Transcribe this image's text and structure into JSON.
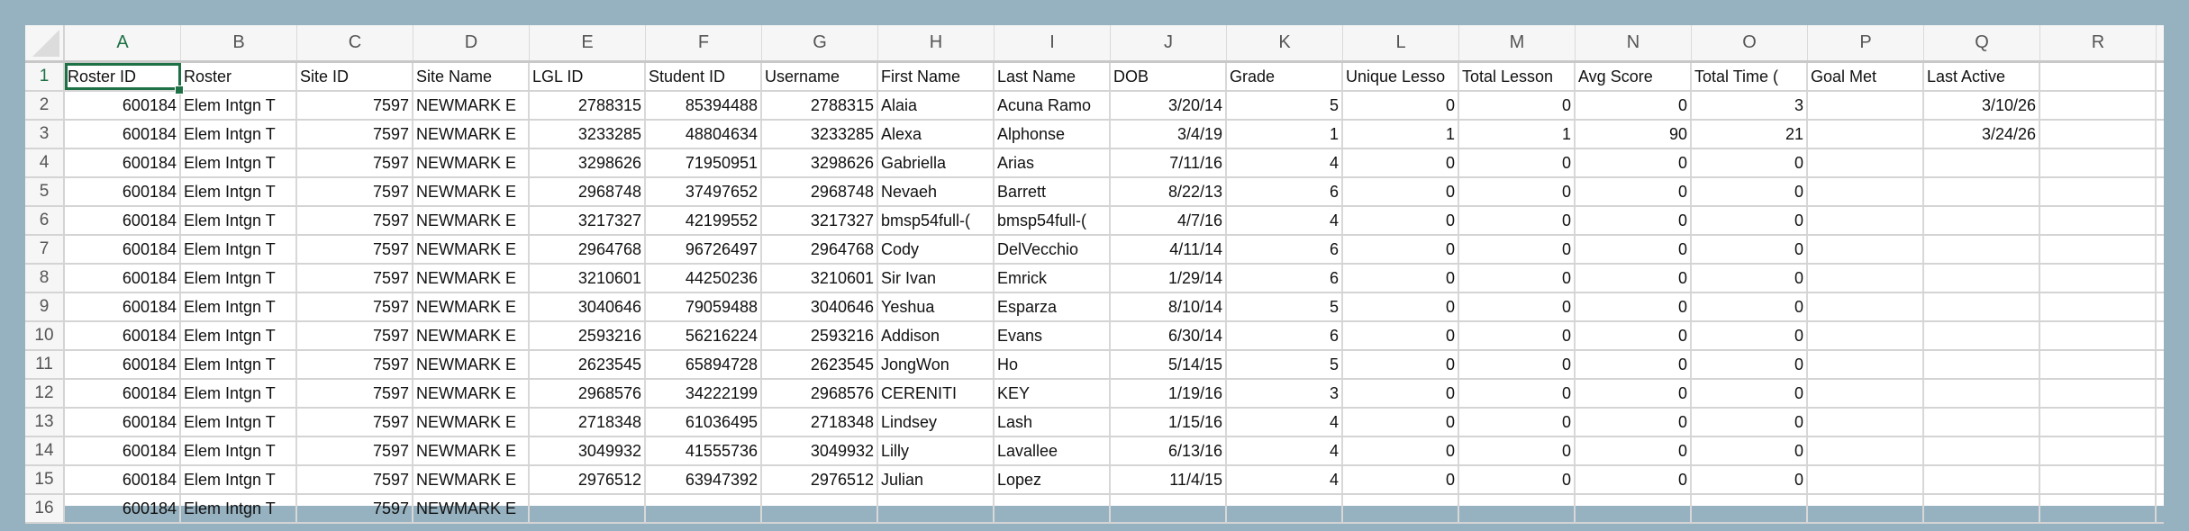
{
  "columns": [
    "A",
    "B",
    "C",
    "D",
    "E",
    "F",
    "G",
    "H",
    "I",
    "J",
    "K",
    "L",
    "M",
    "N",
    "O",
    "P",
    "Q",
    "R"
  ],
  "active_cell": "A1",
  "accent_color": "#1e7145",
  "rows": [
    {
      "n": "1",
      "cells": [
        "Roster ID",
        "Roster",
        "Site ID",
        "Site Name",
        "LGL ID",
        "Student ID",
        "Username",
        "First Name",
        "Last Name",
        "DOB",
        "Grade",
        "Unique Lesso",
        "Total Lesson",
        "Avg Score",
        "Total Time (",
        "Goal Met",
        "Last Active",
        ""
      ]
    },
    {
      "n": "2",
      "cells": [
        "600184",
        "Elem Intgn T",
        "7597",
        "NEWMARK E",
        "2788315",
        "85394488",
        "2788315",
        "Alaia",
        "Acuna Ramo",
        "3/20/14",
        "5",
        "0",
        "0",
        "0",
        "3",
        "",
        "3/10/26",
        ""
      ]
    },
    {
      "n": "3",
      "cells": [
        "600184",
        "Elem Intgn T",
        "7597",
        "NEWMARK E",
        "3233285",
        "48804634",
        "3233285",
        "Alexa",
        "Alphonse",
        "3/4/19",
        "1",
        "1",
        "1",
        "90",
        "21",
        "",
        "3/24/26",
        ""
      ]
    },
    {
      "n": "4",
      "cells": [
        "600184",
        "Elem Intgn T",
        "7597",
        "NEWMARK E",
        "3298626",
        "71950951",
        "3298626",
        "Gabriella",
        "Arias",
        "7/11/16",
        "4",
        "0",
        "0",
        "0",
        "0",
        "",
        "",
        ""
      ]
    },
    {
      "n": "5",
      "cells": [
        "600184",
        "Elem Intgn T",
        "7597",
        "NEWMARK E",
        "2968748",
        "37497652",
        "2968748",
        "Nevaeh",
        "Barrett",
        "8/22/13",
        "6",
        "0",
        "0",
        "0",
        "0",
        "",
        "",
        ""
      ]
    },
    {
      "n": "6",
      "cells": [
        "600184",
        "Elem Intgn T",
        "7597",
        "NEWMARK E",
        "3217327",
        "42199552",
        "3217327",
        "bmsp54full-(",
        "bmsp54full-(",
        "4/7/16",
        "4",
        "0",
        "0",
        "0",
        "0",
        "",
        "",
        ""
      ]
    },
    {
      "n": "7",
      "cells": [
        "600184",
        "Elem Intgn T",
        "7597",
        "NEWMARK E",
        "2964768",
        "96726497",
        "2964768",
        "Cody",
        "DelVecchio",
        "4/11/14",
        "6",
        "0",
        "0",
        "0",
        "0",
        "",
        "",
        ""
      ]
    },
    {
      "n": "8",
      "cells": [
        "600184",
        "Elem Intgn T",
        "7597",
        "NEWMARK E",
        "3210601",
        "44250236",
        "3210601",
        "Sir Ivan",
        "Emrick",
        "1/29/14",
        "6",
        "0",
        "0",
        "0",
        "0",
        "",
        "",
        ""
      ]
    },
    {
      "n": "9",
      "cells": [
        "600184",
        "Elem Intgn T",
        "7597",
        "NEWMARK E",
        "3040646",
        "79059488",
        "3040646",
        "Yeshua",
        "Esparza",
        "8/10/14",
        "5",
        "0",
        "0",
        "0",
        "0",
        "",
        "",
        ""
      ]
    },
    {
      "n": "10",
      "cells": [
        "600184",
        "Elem Intgn T",
        "7597",
        "NEWMARK E",
        "2593216",
        "56216224",
        "2593216",
        "Addison",
        "Evans",
        "6/30/14",
        "6",
        "0",
        "0",
        "0",
        "0",
        "",
        "",
        ""
      ]
    },
    {
      "n": "11",
      "cells": [
        "600184",
        "Elem Intgn T",
        "7597",
        "NEWMARK E",
        "2623545",
        "65894728",
        "2623545",
        "JongWon",
        "Ho",
        "5/14/15",
        "5",
        "0",
        "0",
        "0",
        "0",
        "",
        "",
        ""
      ]
    },
    {
      "n": "12",
      "cells": [
        "600184",
        "Elem Intgn T",
        "7597",
        "NEWMARK E",
        "2968576",
        "34222199",
        "2968576",
        "CERENITI",
        "KEY",
        "1/19/16",
        "3",
        "0",
        "0",
        "0",
        "0",
        "",
        "",
        ""
      ]
    },
    {
      "n": "13",
      "cells": [
        "600184",
        "Elem Intgn T",
        "7597",
        "NEWMARK E",
        "2718348",
        "61036495",
        "2718348",
        "Lindsey",
        "Lash",
        "1/15/16",
        "4",
        "0",
        "0",
        "0",
        "0",
        "",
        "",
        ""
      ]
    },
    {
      "n": "14",
      "cells": [
        "600184",
        "Elem Intgn T",
        "7597",
        "NEWMARK E",
        "3049932",
        "41555736",
        "3049932",
        "Lilly",
        "Lavallee",
        "6/13/16",
        "4",
        "0",
        "0",
        "0",
        "0",
        "",
        "",
        ""
      ]
    },
    {
      "n": "15",
      "cells": [
        "600184",
        "Elem Intgn T",
        "7597",
        "NEWMARK E",
        "2976512",
        "63947392",
        "2976512",
        "Julian",
        "Lopez",
        "11/4/15",
        "4",
        "0",
        "0",
        "0",
        "0",
        "",
        "",
        ""
      ]
    },
    {
      "n": "16",
      "cells": [
        "600184",
        "Elem Intgn T",
        "7597",
        "NEWMARK E",
        "",
        "",
        "",
        "",
        "",
        "",
        "",
        "",
        "",
        "",
        "",
        "",
        "",
        ""
      ]
    }
  ]
}
